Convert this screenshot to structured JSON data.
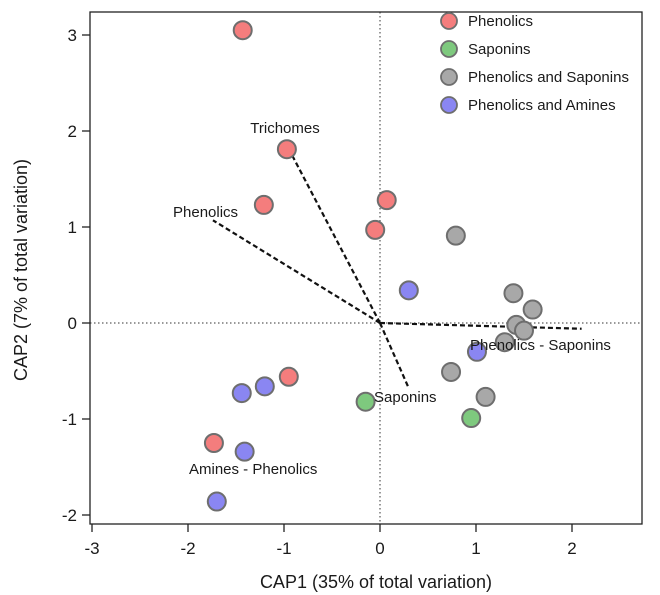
{
  "chart_data": {
    "type": "scatter",
    "xlabel": "CAP1 (35% of total variation)",
    "ylabel": "CAP2 (7% of total variation)",
    "xlim": [
      -3.1,
      2.9
    ],
    "ylim": [
      -2.1,
      3.3
    ],
    "xticks": [
      -3,
      -2,
      -1,
      0,
      1,
      2
    ],
    "yticks": [
      -2,
      -1,
      0,
      1,
      2,
      3
    ],
    "legend": "top-right",
    "series": [
      {
        "name": "Phenolics",
        "color": "#f47d7d",
        "points": [
          {
            "x": -1.43,
            "y": 3.05
          },
          {
            "x": -0.97,
            "y": 1.81
          },
          {
            "x": -1.21,
            "y": 1.23
          },
          {
            "x": 0.07,
            "y": 1.28
          },
          {
            "x": -0.05,
            "y": 0.97
          },
          {
            "x": -0.95,
            "y": -0.56
          },
          {
            "x": -1.73,
            "y": -1.25
          }
        ]
      },
      {
        "name": "Saponins",
        "color": "#7ec97e",
        "points": [
          {
            "x": -0.15,
            "y": -0.82
          },
          {
            "x": 0.95,
            "y": -0.99
          }
        ]
      },
      {
        "name": "Phenolics and Saponins",
        "color": "#a8a8a8",
        "points": [
          {
            "x": 0.79,
            "y": 0.91
          },
          {
            "x": 1.39,
            "y": 0.31
          },
          {
            "x": 1.59,
            "y": 0.14
          },
          {
            "x": 1.42,
            "y": -0.02
          },
          {
            "x": 1.5,
            "y": -0.08
          },
          {
            "x": 1.3,
            "y": -0.2
          },
          {
            "x": 0.74,
            "y": -0.51
          },
          {
            "x": 1.1,
            "y": -0.77
          }
        ]
      },
      {
        "name": "Phenolics and Amines",
        "color": "#8a86f2",
        "points": [
          {
            "x": 0.3,
            "y": 0.34
          },
          {
            "x": 1.01,
            "y": -0.3
          },
          {
            "x": -1.2,
            "y": -0.66
          },
          {
            "x": -1.44,
            "y": -0.73
          },
          {
            "x": -1.41,
            "y": -1.34
          },
          {
            "x": -1.7,
            "y": -1.86
          }
        ]
      }
    ],
    "vectors": [
      {
        "label": "Trichomes",
        "x": -0.98,
        "y": 1.87
      },
      {
        "label": "Phenolics",
        "x": -1.74,
        "y": 1.07
      },
      {
        "label": "Saponins",
        "x": 0.3,
        "y": -0.68
      },
      {
        "label": "Phenolics - Saponins",
        "x": 2.1,
        "y": -0.06
      },
      {
        "label": "Amines - Phenolics",
        "x": 0,
        "y": 0
      }
    ]
  }
}
